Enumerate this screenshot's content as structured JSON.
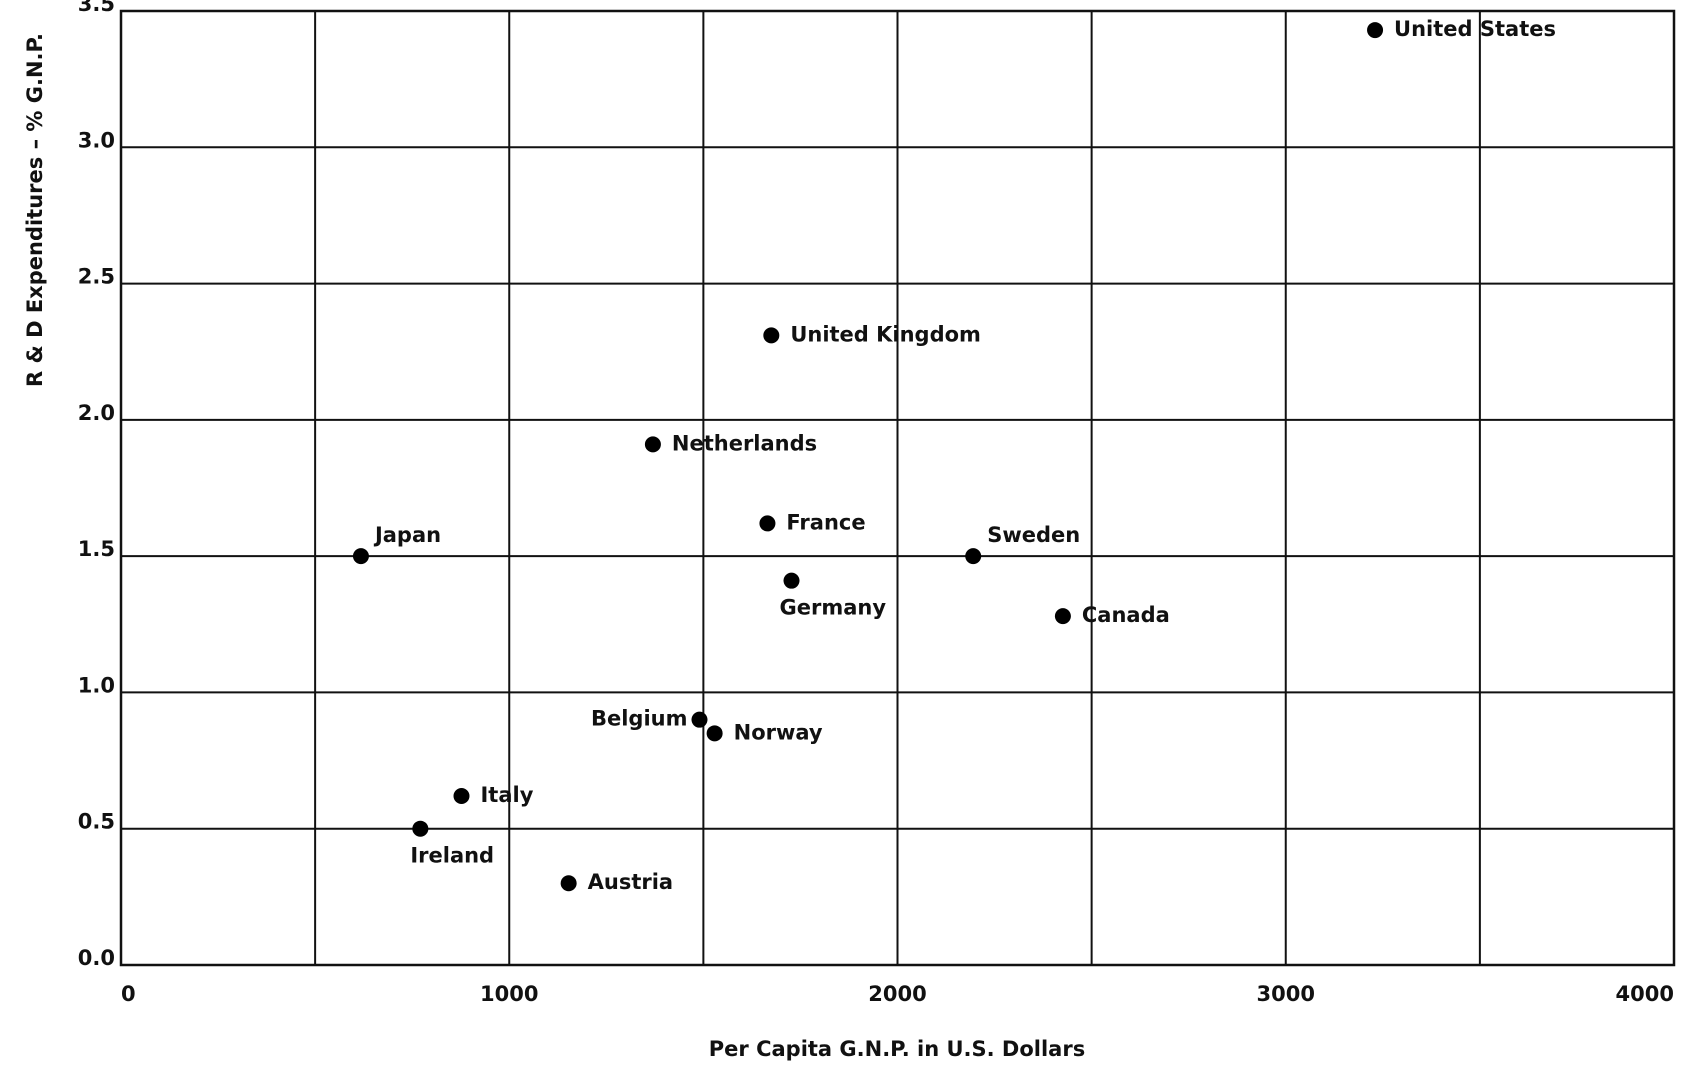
{
  "chart_data": {
    "type": "scatter",
    "x_label": "Per Capita G.N.P. in U.S. Dollars",
    "y_label": "R & D Expenditures – % G.N.P.",
    "labels": [
      "United States",
      "United Kingdom",
      "Netherlands",
      "France",
      "Germany",
      "Sweden",
      "Canada",
      "Japan",
      "Belgium",
      "Norway",
      "Italy",
      "Ireland",
      "Austria"
    ],
    "x": [
      3230,
      1675,
      1370,
      1665,
      1727,
      2195,
      2426,
      618,
      1490,
      1529,
      877,
      771,
      1153
    ],
    "values": [
      3.43,
      2.31,
      1.91,
      1.62,
      1.41,
      1.5,
      1.28,
      1.5,
      0.9,
      0.85,
      0.62,
      0.5,
      0.3
    ],
    "color": "#000000",
    "xlim": [
      0,
      4000
    ],
    "xticks": [
      0,
      1000,
      2000,
      3000,
      4000
    ],
    "xminorticks": [
      500,
      1500,
      2500,
      3500
    ],
    "ylim": [
      0,
      3.5
    ],
    "yticks": [
      {
        "value": 0,
        "label": "0.0"
      },
      0.5,
      {
        "value": 1,
        "label": "1.0"
      },
      1.5,
      {
        "value": 2,
        "label": "2.0"
      },
      2.5,
      {
        "value": 3,
        "label": "3.0"
      },
      3.5
    ],
    "grid": true
  }
}
